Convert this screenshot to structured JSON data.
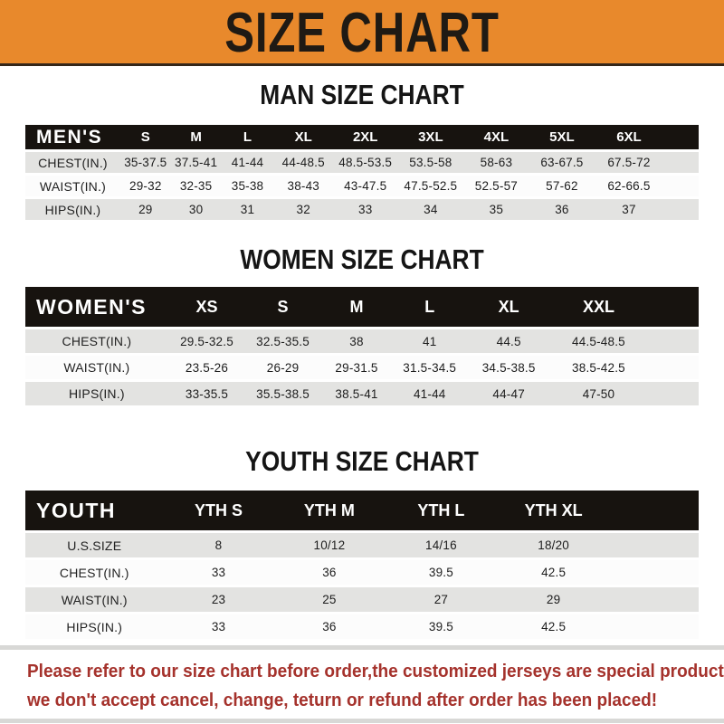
{
  "banner": {
    "title": "SIZE CHART",
    "bg_color": "#E8892C",
    "text_color": "#1f1a14"
  },
  "colors": {
    "header_bar": "#17130f",
    "row_gray": "#E3E3E1",
    "row_white": "#fcfcfc",
    "footer_red": "#A5322C",
    "rule_gray": "#D8D8D6"
  },
  "sections": [
    {
      "title": "MAN SIZE CHART",
      "table": {
        "header_label": "MEN'S",
        "columns": [
          "S",
          "M",
          "L",
          "XL",
          "2XL",
          "3XL",
          "4XL",
          "5XL",
          "6XL"
        ],
        "rows": [
          {
            "label": "CHEST(IN.)",
            "values": [
              "35-37.5",
              "37.5-41",
              "41-44",
              "44-48.5",
              "48.5-53.5",
              "53.5-58",
              "58-63",
              "63-67.5",
              "67.5-72"
            ]
          },
          {
            "label": "WAIST(IN.)",
            "values": [
              "29-32",
              "32-35",
              "35-38",
              "38-43",
              "43-47.5",
              "47.5-52.5",
              "52.5-57",
              "57-62",
              "62-66.5"
            ]
          },
          {
            "label": "HIPS(IN.)",
            "values": [
              "29",
              "30",
              "31",
              "32",
              "33",
              "34",
              "35",
              "36",
              "37"
            ]
          }
        ]
      }
    },
    {
      "title": "WOMEN SIZE CHART",
      "table": {
        "header_label": "WOMEN'S",
        "columns": [
          "XS",
          "S",
          "M",
          "L",
          "XL",
          "XXL"
        ],
        "rows": [
          {
            "label": "CHEST(IN.)",
            "values": [
              "29.5-32.5",
              "32.5-35.5",
              "38",
              "41",
              "44.5",
              "44.5-48.5"
            ]
          },
          {
            "label": "WAIST(IN.)",
            "values": [
              "23.5-26",
              "26-29",
              "29-31.5",
              "31.5-34.5",
              "34.5-38.5",
              "38.5-42.5"
            ]
          },
          {
            "label": "HIPS(IN.)",
            "values": [
              "33-35.5",
              "35.5-38.5",
              "38.5-41",
              "41-44",
              "44-47",
              "47-50"
            ]
          }
        ]
      }
    },
    {
      "title": "YOUTH SIZE CHART",
      "table": {
        "header_label": "YOUTH",
        "columns": [
          "YTH S",
          "YTH M",
          "YTH L",
          "YTH XL"
        ],
        "rows": [
          {
            "label": "U.S.SIZE",
            "values": [
              "8",
              "10/12",
              "14/16",
              "18/20"
            ]
          },
          {
            "label": "CHEST(IN.)",
            "values": [
              "33",
              "36",
              "39.5",
              "42.5"
            ]
          },
          {
            "label": "WAIST(IN.)",
            "values": [
              "23",
              "25",
              "27",
              "29"
            ]
          },
          {
            "label": "HIPS(IN.)",
            "values": [
              "33",
              "36",
              "39.5",
              "42.5"
            ]
          }
        ]
      }
    }
  ],
  "footer": {
    "line1": "Please refer to our size chart before order,the customized jerseys are special products,",
    "line2": "we don't accept cancel, change, teturn or refund after order has been placed!"
  }
}
